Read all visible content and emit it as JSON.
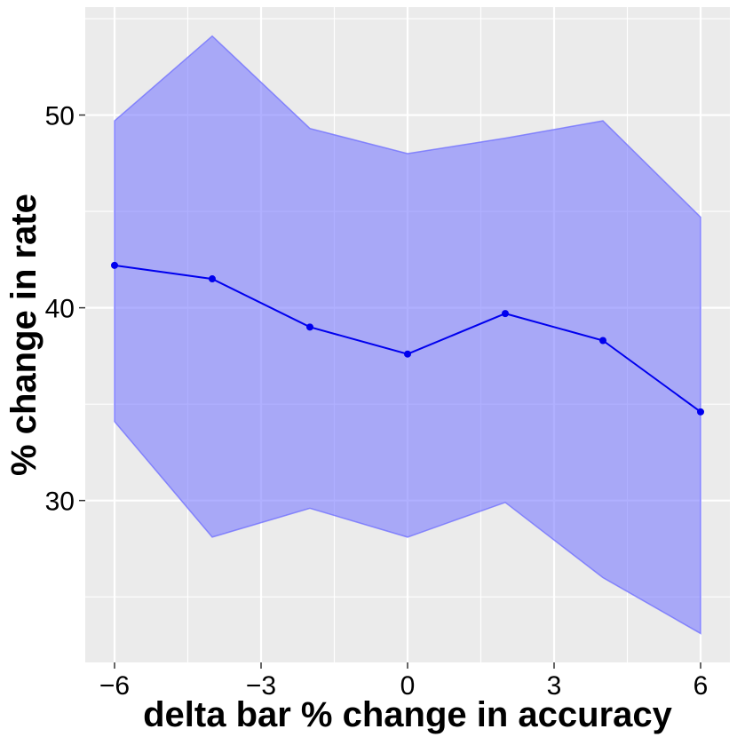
{
  "chart_data": {
    "type": "line",
    "title": "",
    "xlabel": "delta bar % change in accuracy",
    "ylabel": "% change in rate",
    "xlim": [
      -6.6,
      6.6
    ],
    "ylim": [
      21.6,
      55.6
    ],
    "x_ticks": [
      -6,
      -3,
      0,
      3,
      6
    ],
    "x_tick_labels": [
      "−6",
      "−3",
      "0",
      "3",
      "6"
    ],
    "y_ticks": [
      30,
      40,
      50
    ],
    "y_tick_labels": [
      "30",
      "40",
      "50"
    ],
    "x_minor": [
      -4.5,
      -1.5,
      1.5,
      4.5
    ],
    "y_minor": [
      25,
      35,
      45,
      55
    ],
    "grid": true,
    "legend": "none",
    "colors": {
      "panel": "#EBEBEB",
      "grid": "#FFFFFF",
      "line": "#0000EE",
      "ribbon_fill": "#8080FF",
      "ribbon_stroke": "#6666FF"
    },
    "x": [
      -6,
      -4,
      -2,
      0,
      2,
      4,
      6
    ],
    "series": [
      {
        "values": [
          42.2,
          41.5,
          39.0,
          37.6,
          39.7,
          38.3,
          34.6
        ]
      }
    ],
    "ribbon": {
      "lower": [
        34.1,
        28.1,
        29.6,
        28.1,
        29.9,
        26.0,
        23.1
      ],
      "upper": [
        49.7,
        54.1,
        49.3,
        48.0,
        48.8,
        49.7,
        44.7
      ]
    }
  }
}
